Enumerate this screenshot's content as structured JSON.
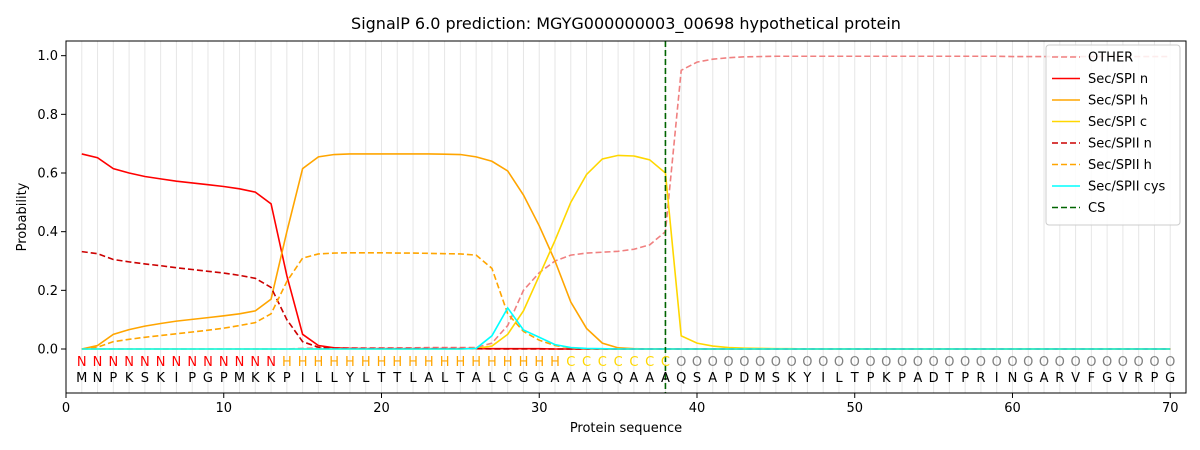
{
  "chart_data": {
    "type": "line",
    "title": "SignalP 6.0 prediction: MGYG000000003_00698 hypothetical protein",
    "xlabel": "Protein sequence",
    "ylabel": "Probability",
    "xlim": [
      0,
      71
    ],
    "ylim": [
      -0.15,
      1.05
    ],
    "xticks": [
      0,
      10,
      20,
      30,
      40,
      50,
      60,
      70
    ],
    "yticks": [
      0.0,
      0.2,
      0.4,
      0.6,
      0.8,
      1.0
    ],
    "grid": "vertical lines at each residue",
    "legend_position": "top-right",
    "sequence": [
      "M",
      "N",
      "P",
      "K",
      "S",
      "K",
      "I",
      "P",
      "G",
      "P",
      "M",
      "K",
      "K",
      "P",
      "I",
      "L",
      "L",
      "Y",
      "L",
      "T",
      "T",
      "L",
      "A",
      "L",
      "T",
      "A",
      "L",
      "C",
      "G",
      "G",
      "A",
      "A",
      "A",
      "G",
      "Q",
      "A",
      "A",
      "A",
      "Q",
      "S",
      "A",
      "P",
      "D",
      "M",
      "S",
      "K",
      "Y",
      "I",
      "L",
      "T",
      "P",
      "K",
      "P",
      "A",
      "D",
      "T",
      "P",
      "R",
      "I",
      "N",
      "G",
      "A",
      "R",
      "V",
      "F",
      "G",
      "V",
      "R",
      "P",
      "G"
    ],
    "labels": [
      "N",
      "N",
      "N",
      "N",
      "N",
      "N",
      "N",
      "N",
      "N",
      "N",
      "N",
      "N",
      "N",
      "H",
      "H",
      "H",
      "H",
      "H",
      "H",
      "H",
      "H",
      "H",
      "H",
      "H",
      "H",
      "H",
      "H",
      "H",
      "H",
      "H",
      "H",
      "C",
      "C",
      "C",
      "C",
      "C",
      "C",
      "C",
      "O",
      "O",
      "O",
      "O",
      "O",
      "O",
      "O",
      "O",
      "O",
      "O",
      "O",
      "O",
      "O",
      "O",
      "O",
      "O",
      "O",
      "O",
      "O",
      "O",
      "O",
      "O",
      "O",
      "O",
      "O",
      "O",
      "O",
      "O",
      "O",
      "O",
      "O",
      "O"
    ],
    "label_colors": {
      "N": "#ff0000",
      "H": "#ffa500",
      "C": "#ffd700",
      "O": "#808080"
    },
    "cs_position": 38,
    "series": [
      {
        "name": "OTHER",
        "color": "#f08080",
        "dash": true,
        "values": [
          0.0,
          0.0,
          0.0,
          0.0,
          0.0,
          0.0,
          0.0,
          0.0,
          0.0,
          0.0,
          0.0,
          0.0,
          0.0,
          0.0,
          0.002,
          0.003,
          0.004,
          0.004,
          0.004,
          0.004,
          0.004,
          0.004,
          0.005,
          0.005,
          0.005,
          0.005,
          0.02,
          0.08,
          0.2,
          0.26,
          0.3,
          0.32,
          0.327,
          0.33,
          0.333,
          0.34,
          0.355,
          0.4,
          0.95,
          0.978,
          0.988,
          0.993,
          0.996,
          0.997,
          0.998,
          0.998,
          0.998,
          0.998,
          0.998,
          0.998,
          0.998,
          0.998,
          0.998,
          0.998,
          0.998,
          0.998,
          0.998,
          0.998,
          0.998,
          0.997,
          0.997,
          0.997,
          0.997,
          0.997,
          0.997,
          0.997,
          0.997,
          0.997,
          0.997,
          0.997
        ]
      },
      {
        "name": "Sec/SPI n",
        "color": "#ff0000",
        "dash": false,
        "values": [
          0.665,
          0.652,
          0.615,
          0.6,
          0.588,
          0.58,
          0.572,
          0.566,
          0.56,
          0.554,
          0.546,
          0.535,
          0.495,
          0.25,
          0.05,
          0.012,
          0.004,
          0.002,
          0.001,
          0.001,
          0.001,
          0.001,
          0.001,
          0.001,
          0.001,
          0.001,
          0.001,
          0.001,
          0.001,
          0.001,
          0.0,
          0.0,
          0.0,
          0.0,
          0.0,
          0.0,
          0.0,
          0.0,
          0.0,
          0.0,
          0.0,
          0.0,
          0.0,
          0.0,
          0.0,
          0.0,
          0.0,
          0.0,
          0.0,
          0.0,
          0.0,
          0.0,
          0.0,
          0.0,
          0.0,
          0.0,
          0.0,
          0.0,
          0.0,
          0.0,
          0.0,
          0.0,
          0.0,
          0.0,
          0.0,
          0.0,
          0.0,
          0.0,
          0.0,
          0.0
        ]
      },
      {
        "name": "Sec/SPI h",
        "color": "#ffa500",
        "dash": false,
        "values": [
          0.0,
          0.012,
          0.05,
          0.066,
          0.078,
          0.087,
          0.095,
          0.101,
          0.107,
          0.113,
          0.12,
          0.13,
          0.17,
          0.4,
          0.615,
          0.655,
          0.663,
          0.665,
          0.665,
          0.665,
          0.665,
          0.665,
          0.665,
          0.664,
          0.663,
          0.655,
          0.64,
          0.607,
          0.525,
          0.42,
          0.3,
          0.16,
          0.07,
          0.02,
          0.004,
          0.001,
          0.0,
          0.0,
          0.0,
          0.0,
          0.0,
          0.0,
          0.0,
          0.0,
          0.0,
          0.0,
          0.0,
          0.0,
          0.0,
          0.0,
          0.0,
          0.0,
          0.0,
          0.0,
          0.0,
          0.0,
          0.0,
          0.0,
          0.0,
          0.0,
          0.0,
          0.0,
          0.0,
          0.0,
          0.0,
          0.0,
          0.0,
          0.0,
          0.0,
          0.0
        ]
      },
      {
        "name": "Sec/SPI c",
        "color": "#ffd700",
        "dash": false,
        "values": [
          0.0,
          0.0,
          0.0,
          0.0,
          0.0,
          0.0,
          0.0,
          0.0,
          0.0,
          0.0,
          0.0,
          0.0,
          0.0,
          0.0,
          0.0,
          0.0,
          0.0,
          0.0,
          0.0,
          0.0,
          0.0,
          0.0,
          0.0,
          0.0,
          0.0,
          0.002,
          0.01,
          0.05,
          0.13,
          0.25,
          0.37,
          0.5,
          0.595,
          0.648,
          0.66,
          0.658,
          0.645,
          0.6,
          0.045,
          0.02,
          0.01,
          0.005,
          0.003,
          0.002,
          0.001,
          0.001,
          0.0,
          0.0,
          0.0,
          0.0,
          0.0,
          0.0,
          0.0,
          0.0,
          0.0,
          0.0,
          0.0,
          0.0,
          0.0,
          0.0,
          0.0,
          0.0,
          0.0,
          0.0,
          0.0,
          0.0,
          0.0,
          0.0,
          0.0,
          0.0
        ]
      },
      {
        "name": "Sec/SPII n",
        "color": "#cc0000",
        "dash": true,
        "values": [
          0.332,
          0.325,
          0.305,
          0.297,
          0.29,
          0.284,
          0.277,
          0.271,
          0.265,
          0.259,
          0.251,
          0.241,
          0.21,
          0.1,
          0.025,
          0.006,
          0.002,
          0.001,
          0.001,
          0.001,
          0.001,
          0.001,
          0.001,
          0.001,
          0.001,
          0.001,
          0.0,
          0.0,
          0.0,
          0.0,
          0.0,
          0.0,
          0.0,
          0.0,
          0.0,
          0.0,
          0.0,
          0.0,
          0.0,
          0.0,
          0.0,
          0.0,
          0.0,
          0.0,
          0.0,
          0.0,
          0.0,
          0.0,
          0.0,
          0.0,
          0.0,
          0.0,
          0.0,
          0.0,
          0.0,
          0.0,
          0.0,
          0.0,
          0.0,
          0.0,
          0.0,
          0.0,
          0.0,
          0.0,
          0.0,
          0.0,
          0.0,
          0.0,
          0.0,
          0.0
        ]
      },
      {
        "name": "Sec/SPII h",
        "color": "#ffa500",
        "dash": true,
        "values": [
          0.0,
          0.006,
          0.025,
          0.033,
          0.04,
          0.046,
          0.052,
          0.058,
          0.064,
          0.071,
          0.08,
          0.09,
          0.12,
          0.23,
          0.31,
          0.324,
          0.327,
          0.328,
          0.328,
          0.328,
          0.327,
          0.327,
          0.326,
          0.325,
          0.324,
          0.32,
          0.275,
          0.12,
          0.06,
          0.03,
          0.012,
          0.004,
          0.001,
          0.0,
          0.0,
          0.0,
          0.0,
          0.0,
          0.0,
          0.0,
          0.0,
          0.0,
          0.0,
          0.0,
          0.0,
          0.0,
          0.0,
          0.0,
          0.0,
          0.0,
          0.0,
          0.0,
          0.0,
          0.0,
          0.0,
          0.0,
          0.0,
          0.0,
          0.0,
          0.0,
          0.0,
          0.0,
          0.0,
          0.0,
          0.0,
          0.0,
          0.0,
          0.0,
          0.0,
          0.0
        ]
      },
      {
        "name": "Sec/SPII cys",
        "color": "#00ffff",
        "dash": false,
        "values": [
          0.0,
          0.0,
          0.0,
          0.0,
          0.0,
          0.0,
          0.0,
          0.0,
          0.0,
          0.0,
          0.0,
          0.0,
          0.0,
          0.0,
          0.0,
          0.0,
          0.0,
          0.0,
          0.0,
          0.0,
          0.0,
          0.0,
          0.0,
          0.0,
          0.0,
          0.002,
          0.045,
          0.14,
          0.065,
          0.04,
          0.015,
          0.005,
          0.002,
          0.001,
          0.0,
          0.0,
          0.0,
          0.0,
          0.0,
          0.0,
          0.0,
          0.0,
          0.0,
          0.0,
          0.0,
          0.0,
          0.0,
          0.0,
          0.0,
          0.0,
          0.0,
          0.0,
          0.0,
          0.0,
          0.0,
          0.0,
          0.0,
          0.0,
          0.0,
          0.0,
          0.0,
          0.0,
          0.0,
          0.0,
          0.0,
          0.0,
          0.0,
          0.0,
          0.0,
          0.0
        ]
      }
    ],
    "cs_legend": {
      "name": "CS",
      "color": "#006400"
    }
  }
}
